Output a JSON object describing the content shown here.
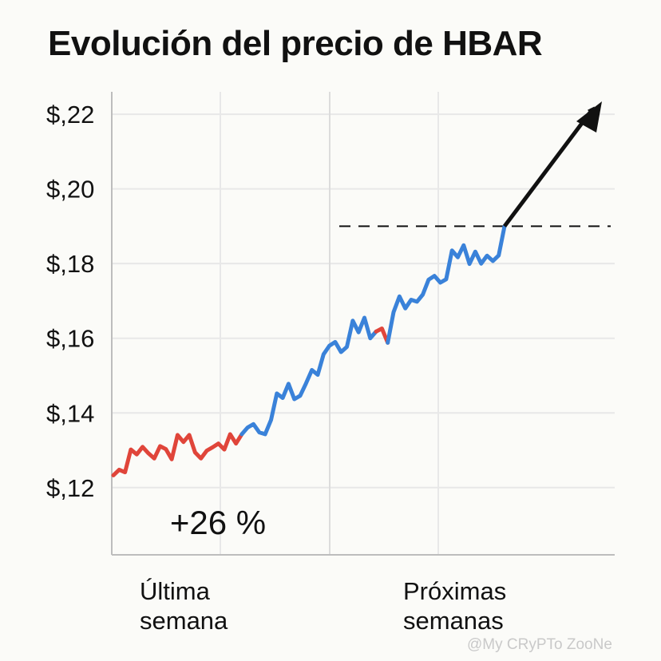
{
  "chart_data": {
    "type": "line",
    "title": "Evolución del precio de HBAR",
    "ylim": [
      0.102,
      0.226
    ],
    "yticks": [
      {
        "value": 0.12,
        "label": "$,12"
      },
      {
        "value": 0.14,
        "label": "$,14"
      },
      {
        "value": 0.16,
        "label": "$,16"
      },
      {
        "value": 0.18,
        "label": "$,18"
      },
      {
        "value": 0.2,
        "label": "$,20"
      },
      {
        "value": 0.22,
        "label": "$,22"
      }
    ],
    "xlabels": [
      {
        "line1": "Última",
        "line2": "semana"
      },
      {
        "line1": "Próximas",
        "line2": "semanas"
      }
    ],
    "grid": true,
    "colors": {
      "down": "#e0453a",
      "up": "#3a82d9",
      "axis": "#bdbdbd",
      "grid": "#e8e8e8",
      "arrow": "#111111"
    },
    "series": [
      {
        "trend": "down",
        "values": [
          0.1233,
          0.1248,
          0.1241,
          0.1302,
          0.1289,
          0.1309,
          0.1292,
          0.1278,
          0.1311,
          0.1303,
          0.1276,
          0.1341,
          0.1322,
          0.1341,
          0.1294,
          0.1278,
          0.1299,
          0.1308,
          0.1318,
          0.1302,
          0.1343,
          0.1318,
          0.1343
        ]
      },
      {
        "trend": "up",
        "values": [
          0.1343,
          0.1361,
          0.137,
          0.1348,
          0.1343,
          0.1381,
          0.1452,
          0.144,
          0.1478,
          0.1437,
          0.1446,
          0.1479,
          0.1515,
          0.1502,
          0.1557,
          0.158,
          0.159,
          0.1563,
          0.1577,
          0.1647,
          0.1616,
          0.1655,
          0.16,
          0.1618
        ]
      },
      {
        "trend": "down",
        "values": [
          0.1618,
          0.1626,
          0.1588
        ]
      },
      {
        "trend": "up",
        "values": [
          0.1588,
          0.167,
          0.1712,
          0.168,
          0.1703,
          0.1698,
          0.1717,
          0.1757,
          0.1767,
          0.1749,
          0.1758,
          0.1835,
          0.1817,
          0.1849,
          0.1799,
          0.1832,
          0.18,
          0.1821,
          0.1807,
          0.1822,
          0.19
        ]
      }
    ],
    "reference_line": {
      "value": 0.19
    },
    "annotation": "+26 %",
    "watermark": "@My CRyPTo ZooNe"
  }
}
